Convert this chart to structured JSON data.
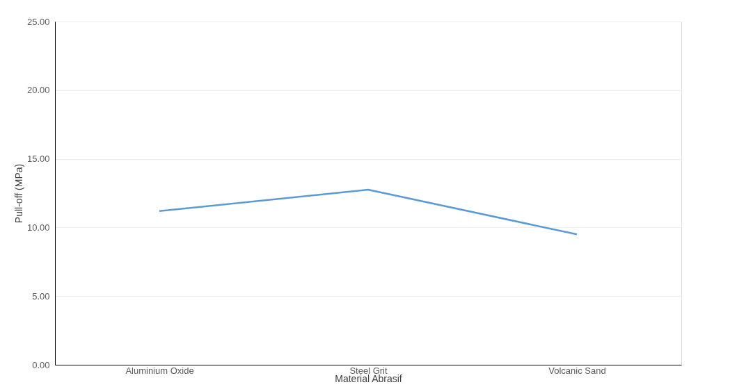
{
  "chart_data": {
    "type": "line",
    "xlabel": "Material Abrasif",
    "ylabel": "Pull-off (MPa)",
    "categories": [
      "Aluminium Oxide",
      "Steel Grit",
      "Volcanic Sand"
    ],
    "series": [
      {
        "color": "#5b9bd5",
        "values": [
          11.2,
          12.75,
          9.5
        ]
      }
    ],
    "ylim": [
      0,
      25
    ],
    "yticks": [
      {
        "value": 0,
        "label": "0.00"
      },
      {
        "value": 5,
        "label": "5.00"
      },
      {
        "value": 10,
        "label": "10.00"
      },
      {
        "value": 15,
        "label": "15.00"
      },
      {
        "value": 20,
        "label": "20.00"
      },
      {
        "value": 25,
        "label": "25.00"
      }
    ],
    "grid": "y",
    "legend": false,
    "marker": "none",
    "line_style": "solid"
  }
}
